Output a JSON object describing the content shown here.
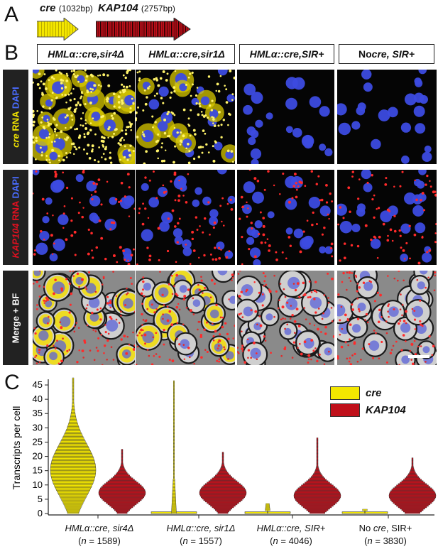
{
  "panelA": {
    "letter": "A",
    "genes": [
      {
        "name": "cre",
        "bp": "(1032bp)",
        "color": "#f3e600"
      },
      {
        "name": "KAP104",
        "bp": "(2757bp)",
        "color": "#c0101b"
      }
    ]
  },
  "panelB": {
    "letter": "B",
    "columns": [
      {
        "prefix": "HMLα::cre, ",
        "suffix": "sir4Δ",
        "italic_suffix": true
      },
      {
        "prefix": "HMLα::cre, ",
        "suffix": "sir1Δ",
        "italic_suffix": true
      },
      {
        "prefix": "HMLα::cre, ",
        "suffix": "SIR+",
        "italic_suffix": true
      },
      {
        "prefix": "No ",
        "mid": "cre",
        "suffix": ", SIR+",
        "italic_suffix": true
      }
    ],
    "rows": [
      {
        "gene": "cre",
        "probe": " RNA",
        "stain": " DAPI",
        "gene_color": "#f3e600",
        "stain_color": "#4a6cff"
      },
      {
        "gene": "KAP104",
        "probe": " RNA",
        "stain": " DAPI",
        "gene_color": "#e01020",
        "stain_color": "#4a6cff"
      },
      {
        "label": "Merge + BF"
      }
    ]
  },
  "chart_data": {
    "letter": "C",
    "type": "violin-histogram",
    "ylabel": "Transcripts per cell",
    "ylim": [
      0,
      46
    ],
    "yticks": [
      0,
      5,
      10,
      15,
      20,
      25,
      30,
      35,
      40,
      45
    ],
    "legend": [
      {
        "name": "cre",
        "color": "#f3e600"
      },
      {
        "name": "KAP104",
        "color": "#c0101b"
      }
    ],
    "groups": [
      {
        "label_prefix": "HMLα::cre, ",
        "label_suffix": "sir4Δ",
        "n_label": "(",
        "n_var": "n",
        "n_value": " = 1589)",
        "cre": {
          "peak": 15,
          "spread": 9,
          "max": 47
        },
        "kap": {
          "peak": 7,
          "spread": 4,
          "max": 22
        }
      },
      {
        "label_prefix": "HMLα::cre, ",
        "label_suffix": "sir1Δ",
        "n_label": "(",
        "n_var": "n",
        "n_value": " = 1557)",
        "cre": {
          "peak": 0,
          "spread": 0,
          "max": 46
        },
        "kap": {
          "peak": 7,
          "spread": 4,
          "max": 21
        }
      },
      {
        "label_prefix": "HMLα::cre, ",
        "label_suffix": "SIR+",
        "n_label": "(",
        "n_var": "n",
        "n_value": " = 4046)",
        "cre": {
          "peak": 0,
          "spread": 0,
          "max": 3
        },
        "kap": {
          "peak": 6,
          "spread": 4,
          "max": 26
        }
      },
      {
        "label_prefix": "No ",
        "label_mid": "cre",
        "label_suffix": ", SIR+",
        "n_label": "(",
        "n_var": "n",
        "n_value": " = 3830)",
        "cre": {
          "peak": 0,
          "spread": 0,
          "max": 1
        },
        "kap": {
          "peak": 6,
          "spread": 4,
          "max": 19
        }
      }
    ]
  }
}
